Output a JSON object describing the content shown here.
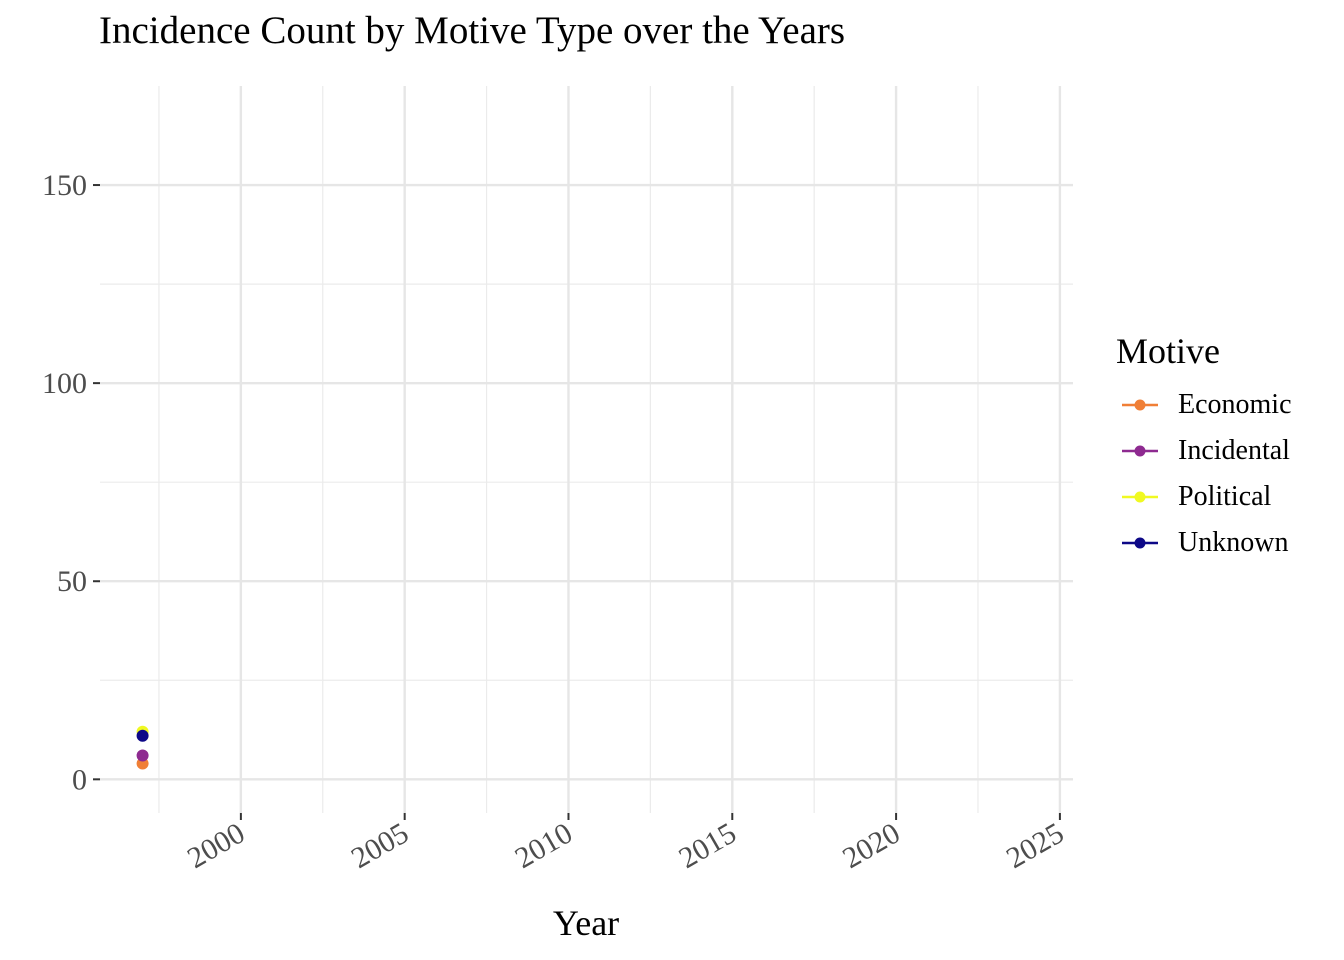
{
  "chart_data": {
    "type": "line",
    "title": "Incidence Count by Motive Type over the Years",
    "xlabel": "Year",
    "ylabel": "",
    "xlim": [
      1995.7,
      2025.4
    ],
    "ylim": [
      -8.5,
      175
    ],
    "x_ticks": [
      2000,
      2005,
      2010,
      2015,
      2020,
      2025
    ],
    "x_tick_labels": [
      "2000",
      "2005",
      "2010",
      "2015",
      "2020",
      "2025"
    ],
    "x_minor_ticks": [
      1997.5,
      2002.5,
      2007.5,
      2012.5,
      2017.5,
      2022.5
    ],
    "y_ticks": [
      0,
      50,
      100,
      150
    ],
    "y_tick_labels": [
      "0",
      "50",
      "100",
      "150"
    ],
    "y_minor_ticks": [
      25,
      75,
      125
    ],
    "x_tick_label_rotation": 30,
    "grid": true,
    "legend": {
      "title": "Motive",
      "placement": "right"
    },
    "series": [
      {
        "name": "Economic",
        "color": "#F07F36",
        "x": [
          1997
        ],
        "y": [
          4
        ]
      },
      {
        "name": "Incidental",
        "color": "#8E2A90",
        "x": [
          1997
        ],
        "y": [
          6
        ]
      },
      {
        "name": "Political",
        "color": "#F0F921",
        "x": [
          1997
        ],
        "y": [
          12
        ]
      },
      {
        "name": "Unknown",
        "color": "#0D0887",
        "x": [
          1997
        ],
        "y": [
          11
        ]
      }
    ]
  }
}
